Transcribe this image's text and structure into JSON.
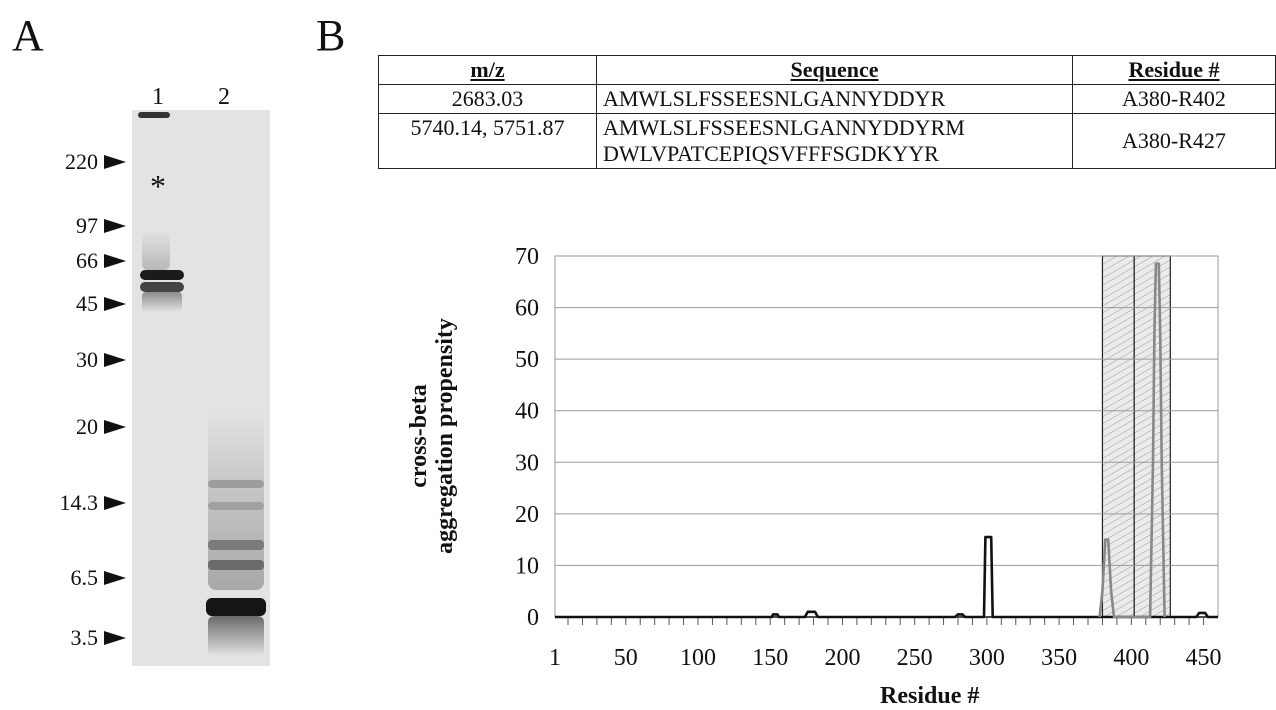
{
  "panel_labels": {
    "a": "A",
    "b": "B"
  },
  "gel": {
    "lanes": [
      "1",
      "2"
    ],
    "star": "*",
    "markers": [
      "220",
      "97",
      "66",
      "45",
      "30",
      "20",
      "14.3",
      "6.5",
      "3.5"
    ]
  },
  "table": {
    "headers": {
      "mz": "m/z",
      "sequence": "Sequence",
      "residue": "Residue #"
    },
    "rows": [
      {
        "mz": "2683.03",
        "sequence": [
          "AMWLSLFSSEESNLGANNYDDYR"
        ],
        "residue": "A380-R402"
      },
      {
        "mz": "5740.14, 5751.87",
        "sequence": [
          "AMWLSLFSSEESNLGANNYDDYRM",
          "DWLVPATCEPIQSVFFFSGDKYYR"
        ],
        "residue": "A380-R427"
      }
    ]
  },
  "chart_data": {
    "type": "line",
    "xlabel": "Residue #",
    "ylabel": "cross-beta aggregation propensity",
    "xlim": [
      1,
      460
    ],
    "ylim": [
      0,
      70
    ],
    "x_ticks": [
      "1",
      "50",
      "100",
      "150",
      "200",
      "250",
      "300",
      "350",
      "400",
      "450"
    ],
    "y_ticks": [
      "0",
      "10",
      "20",
      "30",
      "40",
      "50",
      "60",
      "70"
    ],
    "grid": "horizontal",
    "highlighted_regions": [
      [
        380,
        402
      ],
      [
        402,
        427
      ]
    ],
    "series": [
      {
        "color": "#111111",
        "points": [
          [
            1,
            0
          ],
          [
            151,
            0
          ],
          [
            152,
            0.5
          ],
          [
            155,
            0.5
          ],
          [
            156,
            0
          ],
          [
            174,
            0
          ],
          [
            176,
            1
          ],
          [
            181,
            1
          ],
          [
            183,
            0
          ],
          [
            278,
            0
          ],
          [
            280,
            0.5
          ],
          [
            283,
            0.5
          ],
          [
            285,
            0
          ],
          [
            298,
            0
          ],
          [
            299,
            15.5
          ],
          [
            303,
            15.5
          ],
          [
            304,
            0
          ],
          [
            380,
            0
          ],
          [
            445,
            0
          ],
          [
            447,
            0.8
          ],
          [
            451,
            0.8
          ],
          [
            453,
            0
          ],
          [
            460,
            0
          ]
        ]
      },
      {
        "color": "#888888",
        "points": [
          [
            378,
            0
          ],
          [
            380,
            5
          ],
          [
            382,
            15
          ],
          [
            384,
            15
          ],
          [
            386,
            5
          ],
          [
            388,
            0
          ],
          [
            413,
            0
          ],
          [
            415,
            30
          ],
          [
            416,
            55
          ],
          [
            417,
            68.5
          ],
          [
            419,
            68.5
          ],
          [
            420,
            55
          ],
          [
            421,
            30
          ],
          [
            423,
            0
          ]
        ]
      }
    ]
  }
}
